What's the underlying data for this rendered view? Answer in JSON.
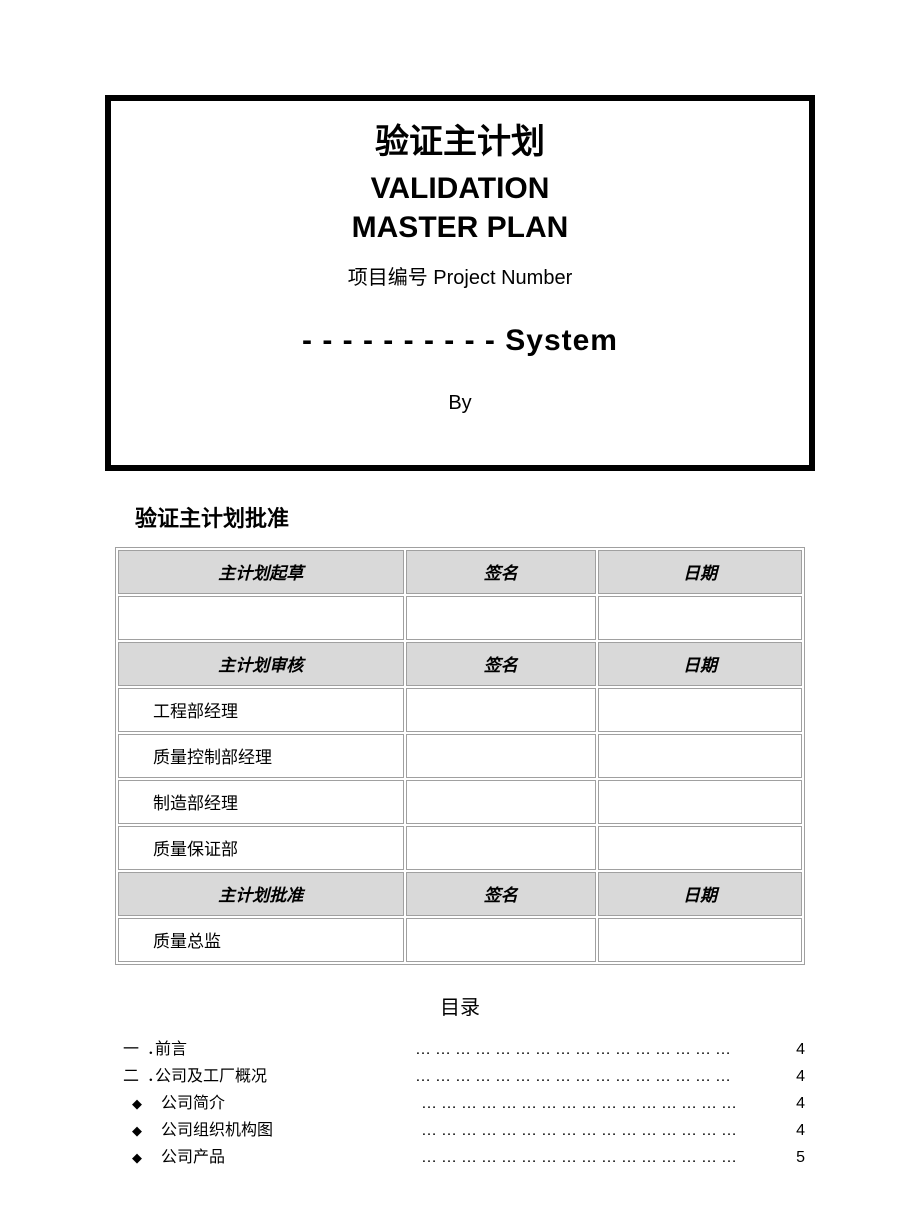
{
  "title_box": {
    "cn": "验证主计划",
    "en_line1": "VALIDATION",
    "en_line2": "MASTER PLAN",
    "project_label": "项目编号 Project Number",
    "system_line": "- - - - - - - - - -  System",
    "by_label": "By"
  },
  "approval": {
    "heading": "验证主计划批准",
    "sections": [
      {
        "role_header": "主计划起草",
        "sig_header": "签名",
        "date_header": "日期",
        "rows": [
          {
            "role": "",
            "sig": "",
            "date": ""
          }
        ]
      },
      {
        "role_header": "主计划审核",
        "sig_header": "签名",
        "date_header": "日期",
        "rows": [
          {
            "role": "工程部经理",
            "sig": "",
            "date": ""
          },
          {
            "role": "质量控制部经理",
            "sig": "",
            "date": ""
          },
          {
            "role": "制造部经理",
            "sig": "",
            "date": ""
          },
          {
            "role": "质量保证部",
            "sig": "",
            "date": ""
          }
        ]
      },
      {
        "role_header": "主计划批准",
        "sig_header": "签名",
        "date_header": "日期",
        "rows": [
          {
            "role": "质量总监",
            "sig": "",
            "date": ""
          }
        ]
      }
    ]
  },
  "toc": {
    "heading": "目录",
    "items": [
      {
        "marker": "一",
        "sep": "．",
        "label": "前言",
        "page": "4",
        "indent": false
      },
      {
        "marker": "二",
        "sep": "．",
        "label": "公司及工厂概况",
        "page": "4",
        "indent": false
      },
      {
        "marker": "◆",
        "sep": "",
        "label": "公司简介",
        "page": "4",
        "indent": true
      },
      {
        "marker": "◆",
        "sep": "",
        "label": "公司组织机构图",
        "page": "4",
        "indent": true
      },
      {
        "marker": "◆",
        "sep": "",
        "label": "公司产品",
        "page": "5",
        "indent": true
      }
    ]
  },
  "colors": {
    "page_bg": "#ffffff",
    "text": "#000000",
    "border_heavy": "#000000",
    "table_border": "#a0a0a0",
    "table_header_bg": "#d9d9d9"
  }
}
